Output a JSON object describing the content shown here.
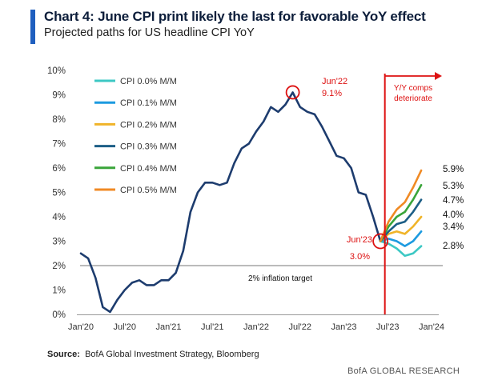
{
  "header": {
    "title": "Chart 4: June CPI print likely the last for favorable YoY effect",
    "subtitle": "Projected paths for US headline CPI YoY"
  },
  "footer": {
    "source_label": "Source:",
    "source_text": "BofA Global Investment Strategy, Bloomberg",
    "brand": "BofA GLOBAL RESEARCH"
  },
  "colors": {
    "historical": "#1d3c6e",
    "target_line": "#bbbbbb",
    "annotation": "#dd1111"
  },
  "chart_data": {
    "type": "line",
    "title": "Chart 4: June CPI print likely the last for favorable YoY effect",
    "subtitle": "Projected paths for US headline CPI YoY",
    "xlabel": "",
    "ylabel": "",
    "x_ticks": [
      "Jan'20",
      "Jul'20",
      "Jan'21",
      "Jul'21",
      "Jan'22",
      "Jul'22",
      "Jan'23",
      "Jul'23",
      "Jan'24"
    ],
    "y_ticks": [
      "0%",
      "1%",
      "2%",
      "3%",
      "4%",
      "5%",
      "6%",
      "7%",
      "8%",
      "9%",
      "10%"
    ],
    "ylim": [
      0,
      10
    ],
    "grid": false,
    "legend": "top-left",
    "historical": {
      "name": "US headline CPI YoY",
      "start": "Jan'20",
      "values": [
        2.5,
        2.3,
        1.5,
        0.3,
        0.1,
        0.6,
        1.0,
        1.3,
        1.4,
        1.2,
        1.2,
        1.4,
        1.4,
        1.7,
        2.6,
        4.2,
        5.0,
        5.4,
        5.4,
        5.3,
        5.4,
        6.2,
        6.8,
        7.0,
        7.5,
        7.9,
        8.5,
        8.3,
        8.6,
        9.1,
        8.5,
        8.3,
        8.2,
        7.7,
        7.1,
        6.5,
        6.4,
        6.0,
        5.0,
        4.9,
        4.0,
        3.0
      ]
    },
    "projections": [
      {
        "name": "CPI 0.0% M/M",
        "color": "#3cc8c4",
        "values": [
          3.0,
          2.9,
          2.7,
          2.4,
          2.5,
          2.8
        ],
        "end_label": "2.8%"
      },
      {
        "name": "CPI 0.1% M/M",
        "color": "#1c9ae0",
        "values": [
          3.0,
          3.1,
          3.0,
          2.8,
          3.0,
          3.4
        ],
        "end_label": "3.4%"
      },
      {
        "name": "CPI 0.2% M/M",
        "color": "#f0b429",
        "values": [
          3.0,
          3.3,
          3.4,
          3.3,
          3.6,
          4.0
        ],
        "end_label": "4.0%"
      },
      {
        "name": "CPI 0.3% M/M",
        "color": "#1c5e86",
        "values": [
          3.0,
          3.4,
          3.7,
          3.8,
          4.2,
          4.7
        ],
        "end_label": "4.7%"
      },
      {
        "name": "CPI 0.4% M/M",
        "color": "#3aa53a",
        "values": [
          3.0,
          3.6,
          4.0,
          4.2,
          4.7,
          5.3
        ],
        "end_label": "5.3%"
      },
      {
        "name": "CPI 0.5% M/M",
        "color": "#f08a24",
        "values": [
          3.0,
          3.8,
          4.3,
          4.6,
          5.2,
          5.9
        ],
        "end_label": "5.9%"
      }
    ],
    "reference_line": {
      "y": 2.0,
      "label": "2% inflation target"
    },
    "annotations": [
      {
        "label_top": "Jun'22",
        "label_bottom": "9.1%",
        "x_index": 29,
        "y": 9.1
      },
      {
        "label_top": "Jun'23",
        "label_bottom": "3.0%",
        "x_index": 41,
        "y": 3.0
      }
    ],
    "divider": {
      "x_index": 41.5,
      "label_top": "Y/Y comps",
      "label_bottom": "deteriorate"
    }
  }
}
